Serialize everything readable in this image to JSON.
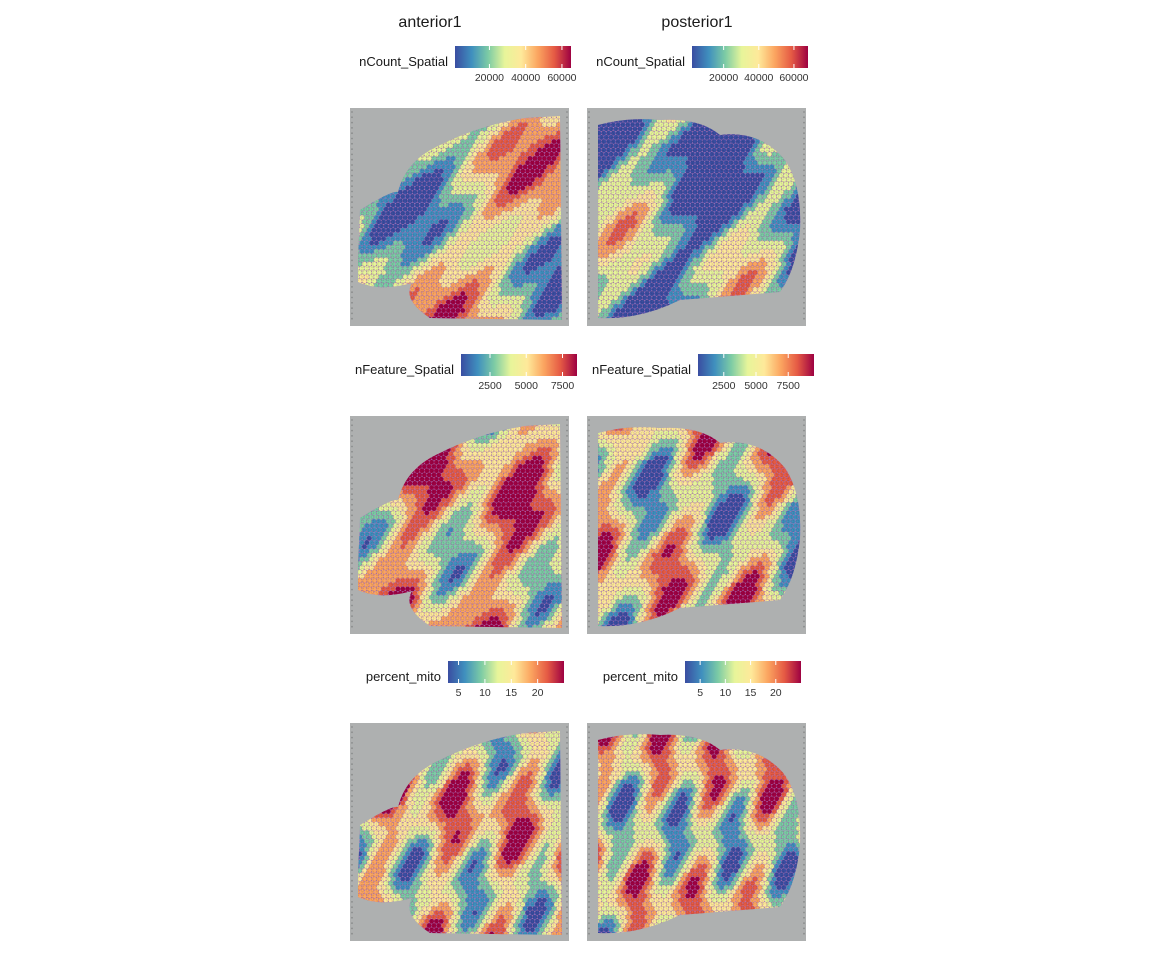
{
  "columns": [
    {
      "title": "anterior1"
    },
    {
      "title": "posterior1"
    }
  ],
  "palette": [
    "#3a4da1",
    "#3f8fbe",
    "#7ccba5",
    "#e7f59a",
    "#fee99a",
    "#fba560",
    "#e55a44",
    "#9e0142"
  ],
  "tissue_colors": {
    "background": "#aeb0b0",
    "mask": "#b06ac0"
  },
  "chart_data": [
    {
      "type": "heatmap",
      "subtype": "spatial feature plot",
      "sections": [
        "anterior1",
        "posterior1"
      ],
      "panels": [
        {
          "feature": "nCount_Spatial",
          "legend": {
            "title": "nCount_Spatial",
            "position": "top",
            "colormap": "Spectral (reversed)"
          },
          "sections": [
            {
              "section": "anterior1",
              "range": [
                1000,
                65000
              ],
              "ticks": [
                {
                  "value": 20000,
                  "label": "20000"
                },
                {
                  "value": 40000,
                  "label": "40000"
                },
                {
                  "value": 60000,
                  "label": "60000"
                }
              ]
            },
            {
              "section": "posterior1",
              "range": [
                2000,
                68000
              ],
              "ticks": [
                {
                  "value": 20000,
                  "label": "20000"
                },
                {
                  "value": 40000,
                  "label": "40000"
                },
                {
                  "value": 60000,
                  "label": "60000"
                }
              ]
            }
          ]
        },
        {
          "feature": "nFeature_Spatial",
          "legend": {
            "title": "nFeature_Spatial",
            "position": "top",
            "colormap": "Spectral (reversed)"
          },
          "sections": [
            {
              "section": "anterior1",
              "range": [
                500,
                8500
              ],
              "ticks": [
                {
                  "value": 2500,
                  "label": "2500"
                },
                {
                  "value": 5000,
                  "label": "5000"
                },
                {
                  "value": 7500,
                  "label": "7500"
                }
              ]
            },
            {
              "section": "posterior1",
              "range": [
                500,
                9500
              ],
              "ticks": [
                {
                  "value": 2500,
                  "label": "2500"
                },
                {
                  "value": 5000,
                  "label": "5000"
                },
                {
                  "value": 7500,
                  "label": "7500"
                }
              ]
            }
          ]
        },
        {
          "feature": "percent_mito",
          "legend": {
            "title": "percent_mito",
            "position": "top",
            "colormap": "Spectral (reversed)"
          },
          "sections": [
            {
              "section": "anterior1",
              "range": [
                3,
                25
              ],
              "ticks": [
                {
                  "value": 5,
                  "label": "5"
                },
                {
                  "value": 10,
                  "label": "10"
                },
                {
                  "value": 15,
                  "label": "15"
                },
                {
                  "value": 20,
                  "label": "20"
                }
              ]
            },
            {
              "section": "posterior1",
              "range": [
                2,
                25
              ],
              "ticks": [
                {
                  "value": 5,
                  "label": "5"
                },
                {
                  "value": 10,
                  "label": "10"
                },
                {
                  "value": 15,
                  "label": "15"
                },
                {
                  "value": 20,
                  "label": "20"
                }
              ]
            }
          ]
        }
      ]
    }
  ]
}
